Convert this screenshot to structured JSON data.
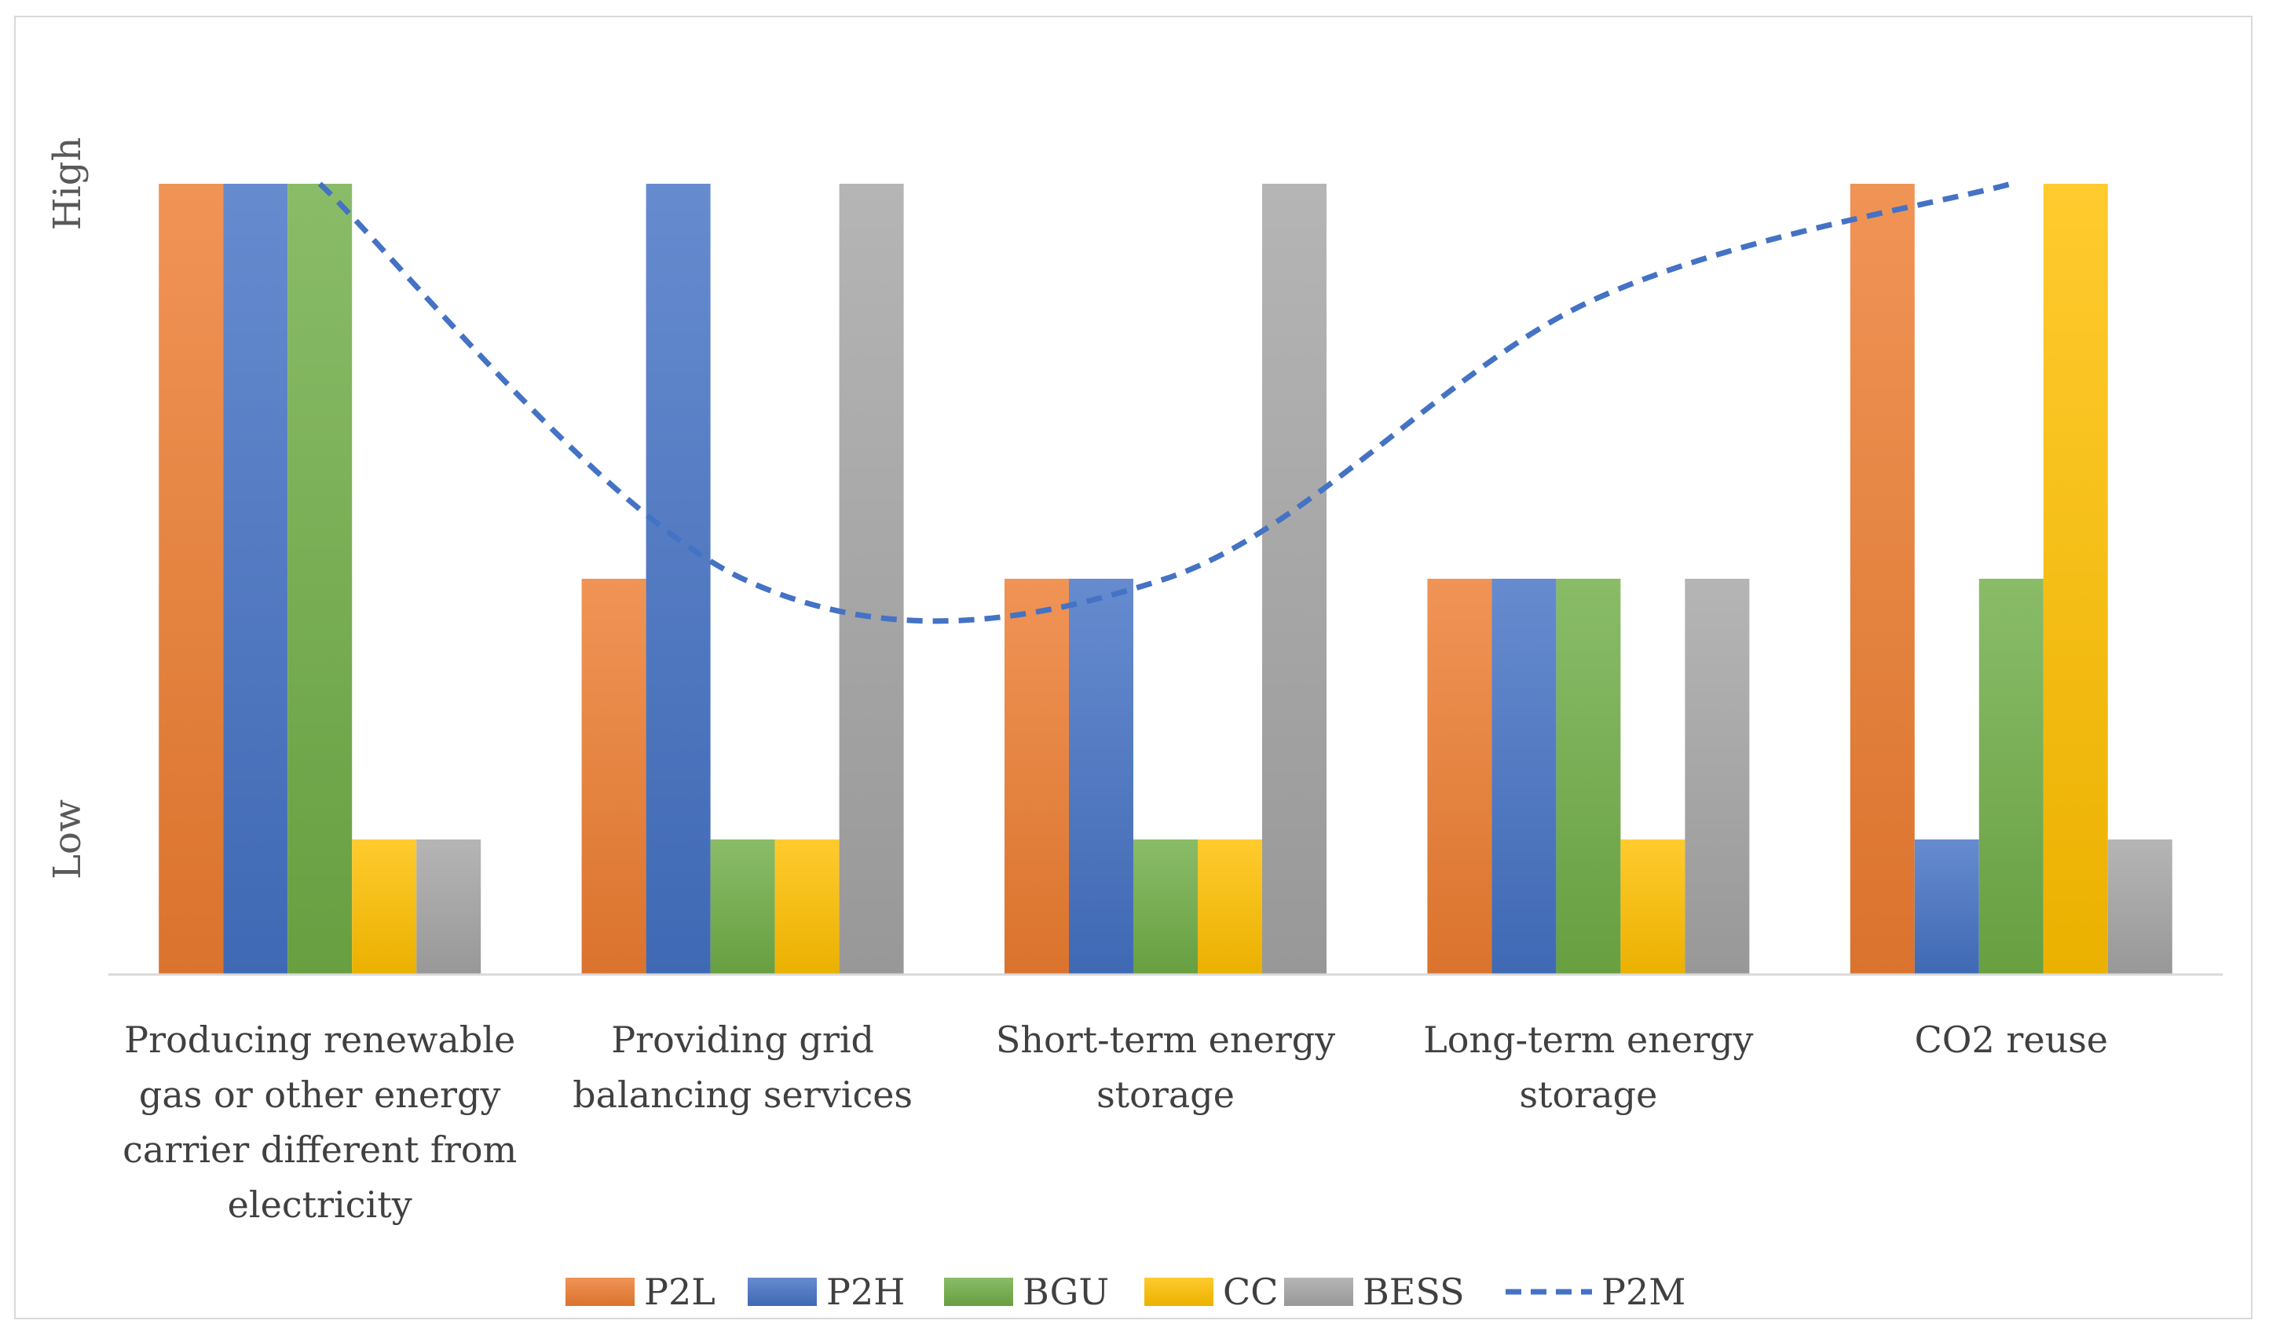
{
  "chart_data": {
    "type": "bar",
    "categories": [
      [
        "Producing renewable",
        "gas or other energy",
        "carrier different from",
        "electricity"
      ],
      [
        "Providing grid",
        "balancing services"
      ],
      [
        "Short-term energy",
        "storage"
      ],
      [
        "Long-term energy",
        "storage"
      ],
      [
        "CO2 reuse"
      ]
    ],
    "y_tick_labels": [
      {
        "label": "Low",
        "value": 0.17
      },
      {
        "label": "High",
        "value": 1.0
      }
    ],
    "ylim": [
      0,
      1
    ],
    "grid": false,
    "legend_position": "bottom",
    "series": [
      {
        "name": "P2L",
        "kind": "bar",
        "color": "#ED7D31",
        "values": [
          1.0,
          0.5,
          0.5,
          0.5,
          1.0
        ]
      },
      {
        "name": "P2H",
        "kind": "bar",
        "color": "#4472C4",
        "values": [
          1.0,
          1.0,
          0.5,
          0.5,
          0.17
        ]
      },
      {
        "name": "BGU",
        "kind": "bar",
        "color": "#70AD47",
        "values": [
          1.0,
          0.17,
          0.17,
          0.5,
          0.5
        ]
      },
      {
        "name": "CC",
        "kind": "bar",
        "color": "#FFC000",
        "values": [
          0.17,
          0.17,
          0.17,
          0.17,
          1.0
        ]
      },
      {
        "name": "BESS",
        "kind": "bar",
        "color": "#A5A5A5",
        "values": [
          0.17,
          1.0,
          1.0,
          0.5,
          0.17
        ]
      },
      {
        "name": "P2M",
        "kind": "line",
        "style": "dashed",
        "color": "#4472C4",
        "values": [
          1.0,
          0.5,
          0.5,
          0.85,
          1.0
        ]
      }
    ]
  }
}
